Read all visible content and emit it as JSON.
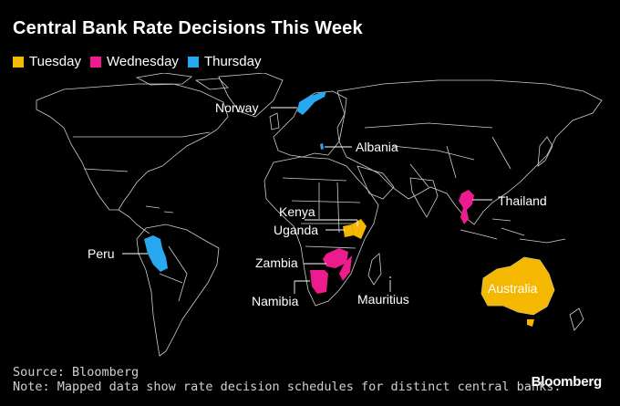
{
  "title": "Central Bank Rate Decisions This Week",
  "legend": [
    {
      "label": "Tuesday",
      "color": "#f5b800"
    },
    {
      "label": "Wednesday",
      "color": "#ec1c8e"
    },
    {
      "label": "Thursday",
      "color": "#27a8f0"
    }
  ],
  "countries": {
    "norway": {
      "label": "Norway",
      "day": "Thursday"
    },
    "albania": {
      "label": "Albania",
      "day": "Thursday"
    },
    "thailand": {
      "label": "Thailand",
      "day": "Wednesday"
    },
    "kenya": {
      "label": "Kenya",
      "day": "Tuesday"
    },
    "uganda": {
      "label": "Uganda",
      "day": "Tuesday"
    },
    "peru": {
      "label": "Peru",
      "day": "Thursday"
    },
    "zambia": {
      "label": "Zambia",
      "day": "Wednesday"
    },
    "namibia": {
      "label": "Namibia",
      "day": "Wednesday"
    },
    "mauritius": {
      "label": "Mauritius",
      "day": "Thursday"
    },
    "australia": {
      "label": "Australia",
      "day": "Tuesday"
    }
  },
  "source": "Source: Bloomberg",
  "note": "Note: Mapped data show rate decision schedules for distinct central banks.",
  "brand": "Bloomberg"
}
